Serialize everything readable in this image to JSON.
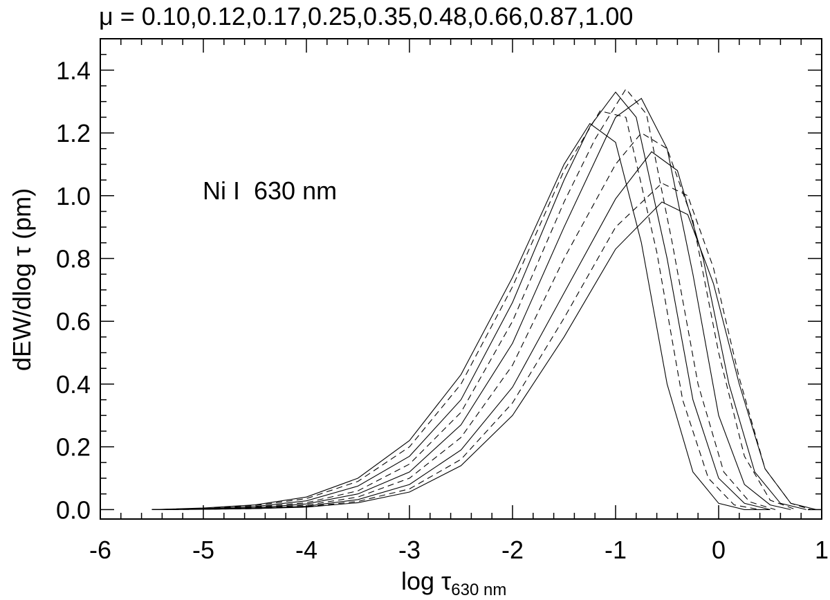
{
  "chart_data": {
    "type": "line",
    "title": "μ = 0.10,0.12,0.17,0.25,0.35,0.48,0.66,0.87,1.00",
    "xlabel": "log τ",
    "xlabel_subscript": "630 nm",
    "ylabel": "dEW/dlog τ (pm)",
    "annotation": "Ni I  630 nm",
    "xlim": [
      -6,
      1
    ],
    "ylim": [
      -0.03,
      1.5
    ],
    "xticks": [
      -6,
      -5,
      -4,
      -3,
      -2,
      -1,
      0,
      1
    ],
    "xtick_labels": [
      "-6",
      "-5",
      "-4",
      "-3",
      "-2",
      "-1",
      "0",
      "1"
    ],
    "yticks": [
      0.0,
      0.2,
      0.4,
      0.6,
      0.8,
      1.0,
      1.2,
      1.4
    ],
    "ytick_labels": [
      "0.0",
      "0.2",
      "0.4",
      "0.6",
      "0.8",
      "1.0",
      "1.2",
      "1.4"
    ],
    "grid": false,
    "line_color": "#000000",
    "series": [
      {
        "style": "solid",
        "x": [
          -5.5,
          -5,
          -4.5,
          -4,
          -3.5,
          -3,
          -2.5,
          -2,
          -1.5,
          -1.25,
          -1,
          -0.75,
          -0.5,
          -0.25,
          0,
          0.25,
          0.5
        ],
        "y": [
          0.0,
          0.005,
          0.015,
          0.04,
          0.1,
          0.22,
          0.43,
          0.74,
          1.1,
          1.23,
          1.17,
          0.85,
          0.4,
          0.12,
          0.02,
          0.0,
          0.0
        ]
      },
      {
        "style": "dashed",
        "x": [
          -5.5,
          -5,
          -4.5,
          -4,
          -3.5,
          -3,
          -2.5,
          -2,
          -1.5,
          -1.15,
          -0.9,
          -0.6,
          -0.35,
          -0.1,
          0.15,
          0.4
        ],
        "y": [
          0.0,
          0.004,
          0.013,
          0.035,
          0.09,
          0.2,
          0.4,
          0.71,
          1.08,
          1.27,
          1.25,
          0.82,
          0.35,
          0.1,
          0.015,
          0.0
        ]
      },
      {
        "style": "solid",
        "x": [
          -5.5,
          -5,
          -4.5,
          -4,
          -3.5,
          -3,
          -2.5,
          -2,
          -1.5,
          -1.25,
          -1,
          -0.8,
          -0.5,
          -0.25,
          0,
          0.25,
          0.5
        ],
        "y": [
          0.0,
          0.003,
          0.01,
          0.028,
          0.075,
          0.17,
          0.35,
          0.66,
          1.05,
          1.22,
          1.33,
          1.25,
          0.8,
          0.35,
          0.1,
          0.02,
          0.0
        ]
      },
      {
        "style": "dashed",
        "x": [
          -5.5,
          -5,
          -4.5,
          -4,
          -3.5,
          -3,
          -2.5,
          -2,
          -1.5,
          -1.2,
          -0.9,
          -0.7,
          -0.45,
          -0.2,
          0.05,
          0.3,
          0.55
        ],
        "y": [
          0.0,
          0.002,
          0.008,
          0.022,
          0.06,
          0.145,
          0.31,
          0.6,
          0.98,
          1.18,
          1.34,
          1.26,
          0.85,
          0.4,
          0.12,
          0.025,
          0.0
        ]
      },
      {
        "style": "solid",
        "x": [
          -5.5,
          -5,
          -4.5,
          -4,
          -3.5,
          -3,
          -2.5,
          -2,
          -1.5,
          -1.0,
          -0.75,
          -0.5,
          -0.25,
          0,
          0.25,
          0.5,
          0.7
        ],
        "y": [
          0.0,
          0.002,
          0.006,
          0.018,
          0.05,
          0.12,
          0.27,
          0.53,
          0.9,
          1.25,
          1.31,
          1.15,
          0.75,
          0.3,
          0.08,
          0.015,
          0.0
        ]
      },
      {
        "style": "dashed",
        "x": [
          -5.5,
          -5,
          -4.5,
          -4,
          -3.5,
          -3,
          -2.5,
          -2,
          -1.5,
          -1.0,
          -0.75,
          -0.5,
          -0.25,
          0,
          0.25,
          0.5,
          0.75
        ],
        "y": [
          0.0,
          0.001,
          0.005,
          0.014,
          0.04,
          0.1,
          0.23,
          0.46,
          0.8,
          1.1,
          1.2,
          1.15,
          0.92,
          0.5,
          0.17,
          0.03,
          0.0
        ]
      },
      {
        "style": "solid",
        "x": [
          -5.5,
          -5,
          -4.5,
          -4,
          -3.5,
          -3,
          -2.5,
          -2,
          -1.5,
          -1.0,
          -0.65,
          -0.4,
          -0.15,
          0.1,
          0.35,
          0.6,
          0.85
        ],
        "y": [
          0.0,
          0.001,
          0.004,
          0.011,
          0.032,
          0.08,
          0.19,
          0.39,
          0.69,
          0.99,
          1.14,
          1.08,
          0.8,
          0.4,
          0.12,
          0.02,
          0.0
        ]
      },
      {
        "style": "dashed",
        "x": [
          -5.5,
          -5,
          -4.5,
          -4,
          -3.5,
          -3,
          -2.5,
          -2,
          -1.5,
          -1.0,
          -0.55,
          -0.3,
          -0.05,
          0.2,
          0.45,
          0.7,
          0.9
        ],
        "y": [
          0.0,
          0.001,
          0.003,
          0.009,
          0.026,
          0.066,
          0.16,
          0.34,
          0.61,
          0.9,
          1.04,
          1.0,
          0.77,
          0.42,
          0.13,
          0.02,
          0.0
        ]
      },
      {
        "style": "solid",
        "x": [
          -5.5,
          -5,
          -4.5,
          -4,
          -3.5,
          -3,
          -2.5,
          -2,
          -1.5,
          -1.0,
          -0.55,
          -0.3,
          -0.05,
          0.2,
          0.45,
          0.7,
          0.95
        ],
        "y": [
          0.0,
          0.001,
          0.003,
          0.008,
          0.022,
          0.056,
          0.14,
          0.3,
          0.55,
          0.83,
          0.98,
          0.94,
          0.72,
          0.4,
          0.13,
          0.02,
          0.0
        ]
      }
    ]
  }
}
